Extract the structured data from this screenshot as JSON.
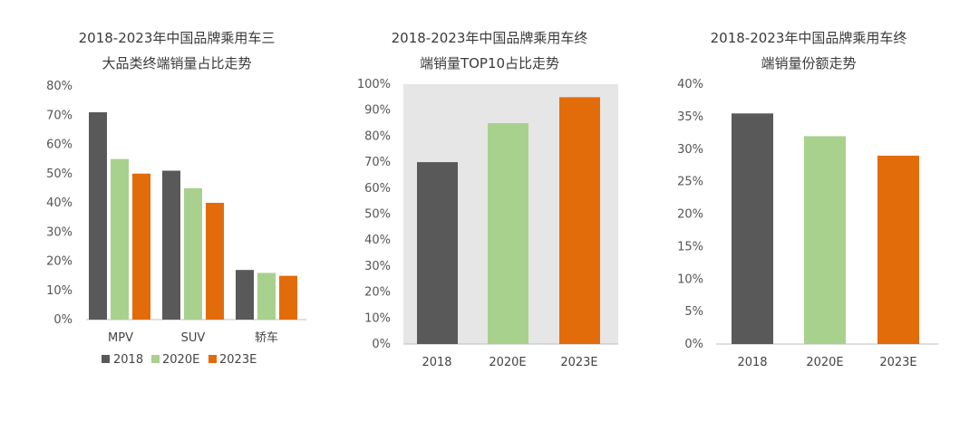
{
  "colors": {
    "series_2018": "#595959",
    "series_2020E": "#a9d18e",
    "series_2023E": "#e36c0a",
    "panel_bg": "#e6e6e6"
  },
  "chart_data": [
    {
      "type": "bar",
      "title_lines": [
        "2018-2023年中国品牌乘用车三",
        "大品类终端销量占比走势"
      ],
      "categories": [
        "MPV",
        "SUV",
        "轿车"
      ],
      "series": [
        {
          "name": "2018",
          "values": [
            71,
            51,
            17
          ]
        },
        {
          "name": "2020E",
          "values": [
            55,
            45,
            16
          ]
        },
        {
          "name": "2023E",
          "values": [
            50,
            40,
            15
          ]
        }
      ],
      "yticks": [
        "0%",
        "10%",
        "20%",
        "30%",
        "40%",
        "50%",
        "60%",
        "70%",
        "80%"
      ],
      "ylim": [
        0,
        80
      ],
      "legend": [
        "2018",
        "2020E",
        "2023E"
      ],
      "legend_position": "bottom"
    },
    {
      "type": "bar",
      "title_lines": [
        "2018-2023年中国品牌乘用车终",
        "端销量TOP10占比走势"
      ],
      "categories": [
        "2018",
        "2020E",
        "2023E"
      ],
      "values": [
        70,
        85,
        95
      ],
      "yticks": [
        "0%",
        "10%",
        "20%",
        "30%",
        "40%",
        "50%",
        "60%",
        "70%",
        "80%",
        "90%",
        "100%"
      ],
      "ylim": [
        0,
        100
      ]
    },
    {
      "type": "bar",
      "title_lines": [
        "2018-2023年中国品牌乘用车终",
        "端销量份额走势"
      ],
      "categories": [
        "2018",
        "2020E",
        "2023E"
      ],
      "values": [
        35.5,
        32,
        29
      ],
      "yticks": [
        "0%",
        "5%",
        "10%",
        "15%",
        "20%",
        "25%",
        "30%",
        "35%",
        "40%"
      ],
      "ylim": [
        0,
        40
      ]
    }
  ]
}
